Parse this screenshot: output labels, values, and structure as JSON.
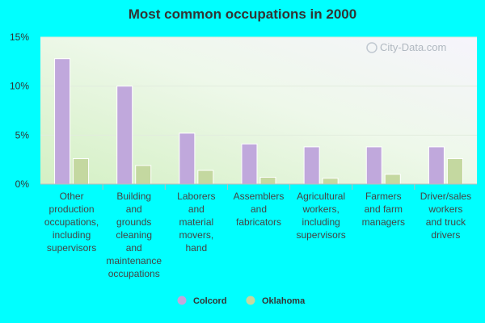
{
  "chart_data": {
    "type": "bar",
    "title": "Most common occupations in 2000",
    "xlabel": "",
    "ylabel": "",
    "ylim": [
      0,
      15
    ],
    "yticks": [
      0,
      5,
      10,
      15
    ],
    "ytick_labels": [
      "0%",
      "5%",
      "10%",
      "15%"
    ],
    "categories": [
      [
        "Other",
        "production",
        "occupations,",
        "including",
        "supervisors"
      ],
      [
        "Building",
        "and",
        "grounds",
        "cleaning",
        "and",
        "maintenance",
        "occupations"
      ],
      [
        "Laborers",
        "and",
        "material",
        "movers,",
        "hand"
      ],
      [
        "Assemblers",
        "and",
        "fabricators"
      ],
      [
        "Agricultural",
        "workers,",
        "including",
        "supervisors"
      ],
      [
        "Farmers",
        "and farm",
        "managers"
      ],
      [
        "Driver/sales",
        "workers",
        "and truck",
        "drivers"
      ]
    ],
    "series": [
      {
        "name": "Colcord",
        "color": "#c0a8dc",
        "values": [
          12.8,
          10.0,
          5.2,
          4.1,
          3.8,
          3.8,
          3.8
        ]
      },
      {
        "name": "Oklahoma",
        "color": "#c4d8a0",
        "values": [
          2.6,
          1.9,
          1.4,
          0.7,
          0.6,
          1.0,
          2.6
        ]
      }
    ],
    "grid": true,
    "legend_position": "bottom-center"
  },
  "watermark": "City-Data.com"
}
